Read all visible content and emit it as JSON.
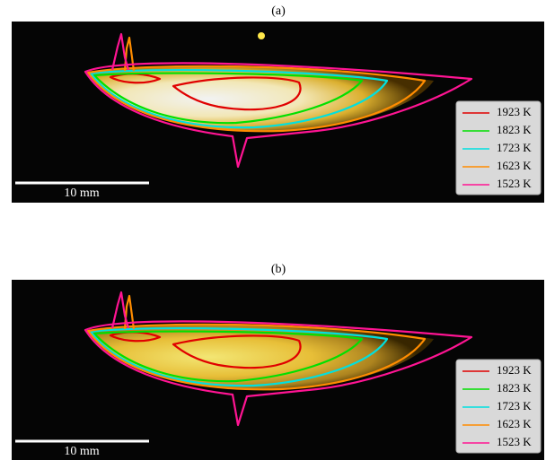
{
  "panels": [
    {
      "label": "(a)",
      "scale_bar": "10 mm",
      "legend": [
        {
          "label": "1923 K",
          "color": "#e00000"
        },
        {
          "label": "1823 K",
          "color": "#00e000"
        },
        {
          "label": "1723 K",
          "color": "#00e0e0"
        },
        {
          "label": "1623 K",
          "color": "#ff8c00"
        },
        {
          "label": "1523 K",
          "color": "#ff1493"
        }
      ]
    },
    {
      "label": "(b)",
      "scale_bar": "10 mm",
      "legend": [
        {
          "label": "1923 K",
          "color": "#e00000"
        },
        {
          "label": "1823 K",
          "color": "#00e000"
        },
        {
          "label": "1723 K",
          "color": "#00e0e0"
        },
        {
          "label": "1623 K",
          "color": "#ff8c00"
        },
        {
          "label": "1523 K",
          "color": "#ff1493"
        }
      ]
    }
  ]
}
